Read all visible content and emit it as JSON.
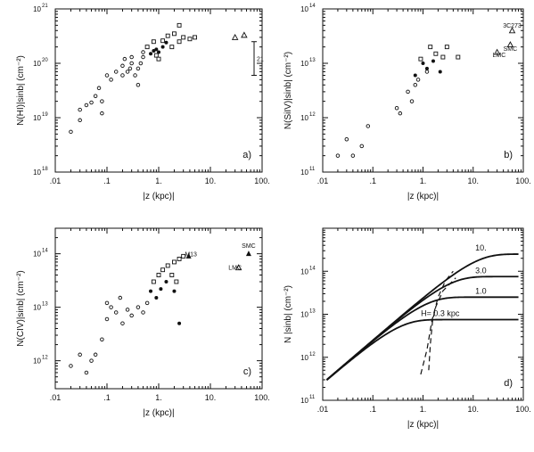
{
  "chart_data": [
    {
      "type": "scatter",
      "panel": "a)",
      "ylabel": "N(HI)|sinb|  (cm⁻²)",
      "xlabel": "|z (kpc)|",
      "x_scale": "log",
      "y_scale": "log",
      "xlim": [
        0.01,
        100
      ],
      "ylim": [
        1e+18,
        1e+21
      ],
      "x_ticks": [
        ".01",
        ".1",
        "1.",
        "10.",
        "100."
      ],
      "y_ticks": [
        {
          "mant": "10",
          "exp": "18",
          "value": 1e+18
        },
        {
          "mant": "10",
          "exp": "19",
          "value": 1e+19
        },
        {
          "mant": "10",
          "exp": "20",
          "value": 1e+20
        },
        {
          "mant": "10",
          "exp": "21",
          "value": 1e+21
        }
      ],
      "error_bar_label": "21",
      "error_bar": {
        "x": 70,
        "y_low": 6e+19,
        "y_high": 2.5e+20
      },
      "series": [
        {
          "marker": "circle-open",
          "points": [
            [
              0.02,
              5.5e+18
            ],
            [
              0.03,
              9e+18
            ],
            [
              0.03,
              1.4e+19
            ],
            [
              0.04,
              1.7e+19
            ],
            [
              0.05,
              1.9e+19
            ],
            [
              0.06,
              2.5e+19
            ],
            [
              0.07,
              3.5e+19
            ],
            [
              0.08,
              1.2e+19
            ],
            [
              0.08,
              2e+19
            ],
            [
              0.1,
              6e+19
            ],
            [
              0.12,
              5e+19
            ],
            [
              0.15,
              7e+19
            ],
            [
              0.2,
              6e+19
            ],
            [
              0.2,
              9e+19
            ],
            [
              0.22,
              1.2e+20
            ],
            [
              0.25,
              7e+19
            ],
            [
              0.28,
              8e+19
            ],
            [
              0.3,
              1e+20
            ],
            [
              0.3,
              1.3e+20
            ],
            [
              0.35,
              6e+19
            ],
            [
              0.4,
              8e+19
            ],
            [
              0.45,
              1e+20
            ],
            [
              0.5,
              1.3e+20
            ],
            [
              0.5,
              1.6e+20
            ],
            [
              0.4,
              4e+19
            ]
          ]
        },
        {
          "marker": "square-open",
          "points": [
            [
              0.6,
              2e+20
            ],
            [
              0.8,
              2.5e+20
            ],
            [
              0.9,
              1.4e+20
            ],
            [
              1.0,
              1.2e+20
            ],
            [
              1.2,
              2.6e+20
            ],
            [
              1.5,
              3.2e+20
            ],
            [
              2.0,
              3.5e+20
            ],
            [
              2.5,
              5e+20
            ],
            [
              3.0,
              3e+20
            ],
            [
              4.0,
              2.8e+20
            ],
            [
              5.0,
              3e+20
            ],
            [
              1.8,
              2e+20
            ],
            [
              2.5,
              2.5e+20
            ]
          ]
        },
        {
          "marker": "circle-filled",
          "points": [
            [
              0.7,
              1.5e+20
            ],
            [
              0.9,
              1.8e+20
            ],
            [
              1.0,
              1.6e+20
            ],
            [
              1.2,
              2e+20
            ],
            [
              1.4,
              2.4e+20
            ],
            [
              0.8,
              1.7e+20
            ]
          ]
        },
        {
          "marker": "triangle-open",
          "points": [
            [
              30,
              3e+20
            ],
            [
              45,
              3.3e+20
            ]
          ]
        }
      ]
    },
    {
      "type": "scatter",
      "panel": "b)",
      "ylabel": "N(SiIV)|sinb|  (cm⁻²)",
      "xlabel": "|z (kpc)|",
      "x_scale": "log",
      "y_scale": "log",
      "xlim": [
        0.01,
        100
      ],
      "ylim": [
        100000000000.0,
        100000000000000.0
      ],
      "x_ticks": [
        ".01",
        ".1",
        "1.",
        "10.",
        "100."
      ],
      "y_ticks": [
        {
          "mant": "10",
          "exp": "11",
          "value": 100000000000.0
        },
        {
          "mant": "10",
          "exp": "12",
          "value": 1000000000000.0
        },
        {
          "mant": "10",
          "exp": "13",
          "value": 10000000000000.0
        },
        {
          "mant": "10",
          "exp": "14",
          "value": 100000000000000.0
        }
      ],
      "annotations": [
        {
          "text": "3C273",
          "x": 60,
          "y": 45000000000000.0
        },
        {
          "text": "SMC",
          "x": 55,
          "y": 17000000000000.0
        },
        {
          "text": "LMC",
          "x": 33,
          "y": 13000000000000.0
        }
      ],
      "series": [
        {
          "marker": "circle-open",
          "points": [
            [
              0.02,
              200000000000.0
            ],
            [
              0.03,
              400000000000.0
            ],
            [
              0.04,
              200000000000.0
            ],
            [
              0.06,
              300000000000.0
            ],
            [
              0.08,
              700000000000.0
            ],
            [
              0.3,
              1500000000000.0
            ],
            [
              0.35,
              1200000000000.0
            ],
            [
              0.5,
              3000000000000.0
            ],
            [
              0.6,
              2000000000000.0
            ],
            [
              0.7,
              4000000000000.0
            ],
            [
              0.8,
              5000000000000.0
            ],
            [
              1.2,
              7000000000000.0
            ]
          ]
        },
        {
          "marker": "square-open",
          "points": [
            [
              0.9,
              12000000000000.0
            ],
            [
              1.4,
              20000000000000.0
            ],
            [
              1.8,
              15000000000000.0
            ],
            [
              2.5,
              13000000000000.0
            ],
            [
              3.0,
              20000000000000.0
            ],
            [
              5.0,
              13000000000000.0
            ]
          ]
        },
        {
          "marker": "circle-filled",
          "points": [
            [
              0.7,
              6000000000000.0
            ],
            [
              1.0,
              10000000000000.0
            ],
            [
              1.2,
              8000000000000.0
            ],
            [
              1.6,
              11000000000000.0
            ],
            [
              2.2,
              7000000000000.0
            ]
          ]
        },
        {
          "marker": "triangle-open",
          "points": [
            [
              30,
              16000000000000.0
            ],
            [
              55,
              22000000000000.0
            ],
            [
              60,
              40000000000000.0
            ]
          ]
        }
      ]
    },
    {
      "type": "scatter",
      "panel": "c)",
      "ylabel": "N(CIV)|sinb|  (cm⁻²)",
      "xlabel": "|z (kpc)|",
      "x_scale": "log",
      "y_scale": "log",
      "xlim": [
        0.01,
        100
      ],
      "ylim": [
        300000000000.0,
        300000000000000.0
      ],
      "x_ticks": [
        ".01",
        ".1",
        "1.",
        "10.",
        "100."
      ],
      "y_ticks": [
        {
          "mant": "10",
          "exp": "12",
          "value": 1000000000000.0
        },
        {
          "mant": "10",
          "exp": "13",
          "value": 10000000000000.0
        },
        {
          "mant": "10",
          "exp": "14",
          "value": 100000000000000.0
        }
      ],
      "annotations": [
        {
          "text": "M13",
          "x": 4.2,
          "y": 90000000000000.0
        },
        {
          "text": "SMC",
          "x": 55,
          "y": 130000000000000.0
        },
        {
          "text": "LMC",
          "x": 30,
          "y": 50000000000000.0
        }
      ],
      "series": [
        {
          "marker": "circle-open",
          "points": [
            [
              0.02,
              800000000000.0
            ],
            [
              0.03,
              1300000000000.0
            ],
            [
              0.04,
              600000000000.0
            ],
            [
              0.05,
              1000000000000.0
            ],
            [
              0.06,
              1300000000000.0
            ],
            [
              0.08,
              2500000000000.0
            ],
            [
              0.1,
              6000000000000.0
            ],
            [
              0.1,
              12000000000000.0
            ],
            [
              0.12,
              10000000000000.0
            ],
            [
              0.15,
              8000000000000.0
            ],
            [
              0.18,
              15000000000000.0
            ],
            [
              0.2,
              5000000000000.0
            ],
            [
              0.25,
              9000000000000.0
            ],
            [
              0.3,
              7000000000000.0
            ],
            [
              0.4,
              10000000000000.0
            ],
            [
              0.5,
              8000000000000.0
            ],
            [
              0.6,
              12000000000000.0
            ]
          ]
        },
        {
          "marker": "square-open",
          "points": [
            [
              0.8,
              30000000000000.0
            ],
            [
              1.0,
              40000000000000.0
            ],
            [
              1.2,
              50000000000000.0
            ],
            [
              1.5,
              60000000000000.0
            ],
            [
              2.0,
              70000000000000.0
            ],
            [
              2.5,
              80000000000000.0
            ],
            [
              3.0,
              90000000000000.0
            ],
            [
              1.8,
              40000000000000.0
            ],
            [
              2.2,
              30000000000000.0
            ]
          ]
        },
        {
          "marker": "circle-filled",
          "points": [
            [
              0.7,
              20000000000000.0
            ],
            [
              0.9,
              15000000000000.0
            ],
            [
              1.1,
              22000000000000.0
            ],
            [
              1.4,
              30000000000000.0
            ],
            [
              2.0,
              20000000000000.0
            ],
            [
              2.5,
              5000000000000.0
            ]
          ]
        },
        {
          "marker": "triangle-open",
          "points": [
            [
              35,
              55000000000000.0
            ]
          ]
        },
        {
          "marker": "triangle-filled",
          "points": [
            [
              3.8,
              90000000000000.0
            ],
            [
              55,
              100000000000000.0
            ]
          ]
        }
      ]
    },
    {
      "type": "line",
      "panel": "d)",
      "ylabel": "N |sinb|   (cm⁻²)",
      "xlabel": "|z (kpc)|",
      "x_scale": "log",
      "y_scale": "log",
      "xlim": [
        0.01,
        100
      ],
      "ylim": [
        100000000000.0,
        1000000000000000.0
      ],
      "x_ticks": [
        ".01",
        ".1",
        "1.",
        "10.",
        "100."
      ],
      "y_ticks": [
        {
          "mant": "10",
          "exp": "11",
          "value": 100000000000.0
        },
        {
          "mant": "10",
          "exp": "12",
          "value": 1000000000000.0
        },
        {
          "mant": "10",
          "exp": "13",
          "value": 10000000000000.0
        },
        {
          "mant": "10",
          "exp": "14",
          "value": 100000000000000.0
        }
      ],
      "n0": 25000000000000.0,
      "series": [
        {
          "label": "H= 0.3 kpc",
          "H": 0.3
        },
        {
          "label": "1.0",
          "H": 1.0
        },
        {
          "label": "3.0",
          "H": 3.0
        },
        {
          "label": "10.",
          "H": 10.0
        }
      ],
      "dashed_curves": [
        [
          [
            0.9,
            400000000000.0
          ],
          [
            1.2,
            1500000000000.0
          ],
          [
            1.5,
            7000000000000.0
          ],
          [
            2.0,
            25000000000000.0
          ],
          [
            2.8,
            60000000000000.0
          ],
          [
            4.0,
            100000000000000.0
          ]
        ],
        [
          [
            1.3,
            500000000000.0
          ],
          [
            1.4,
            2000000000000.0
          ],
          [
            1.55,
            7000000000000.0
          ],
          [
            1.8,
            15000000000000.0
          ],
          [
            2.5,
            35000000000000.0
          ],
          [
            4.5,
            70000000000000.0
          ]
        ]
      ],
      "x_range": [
        0.012,
        80
      ]
    }
  ]
}
